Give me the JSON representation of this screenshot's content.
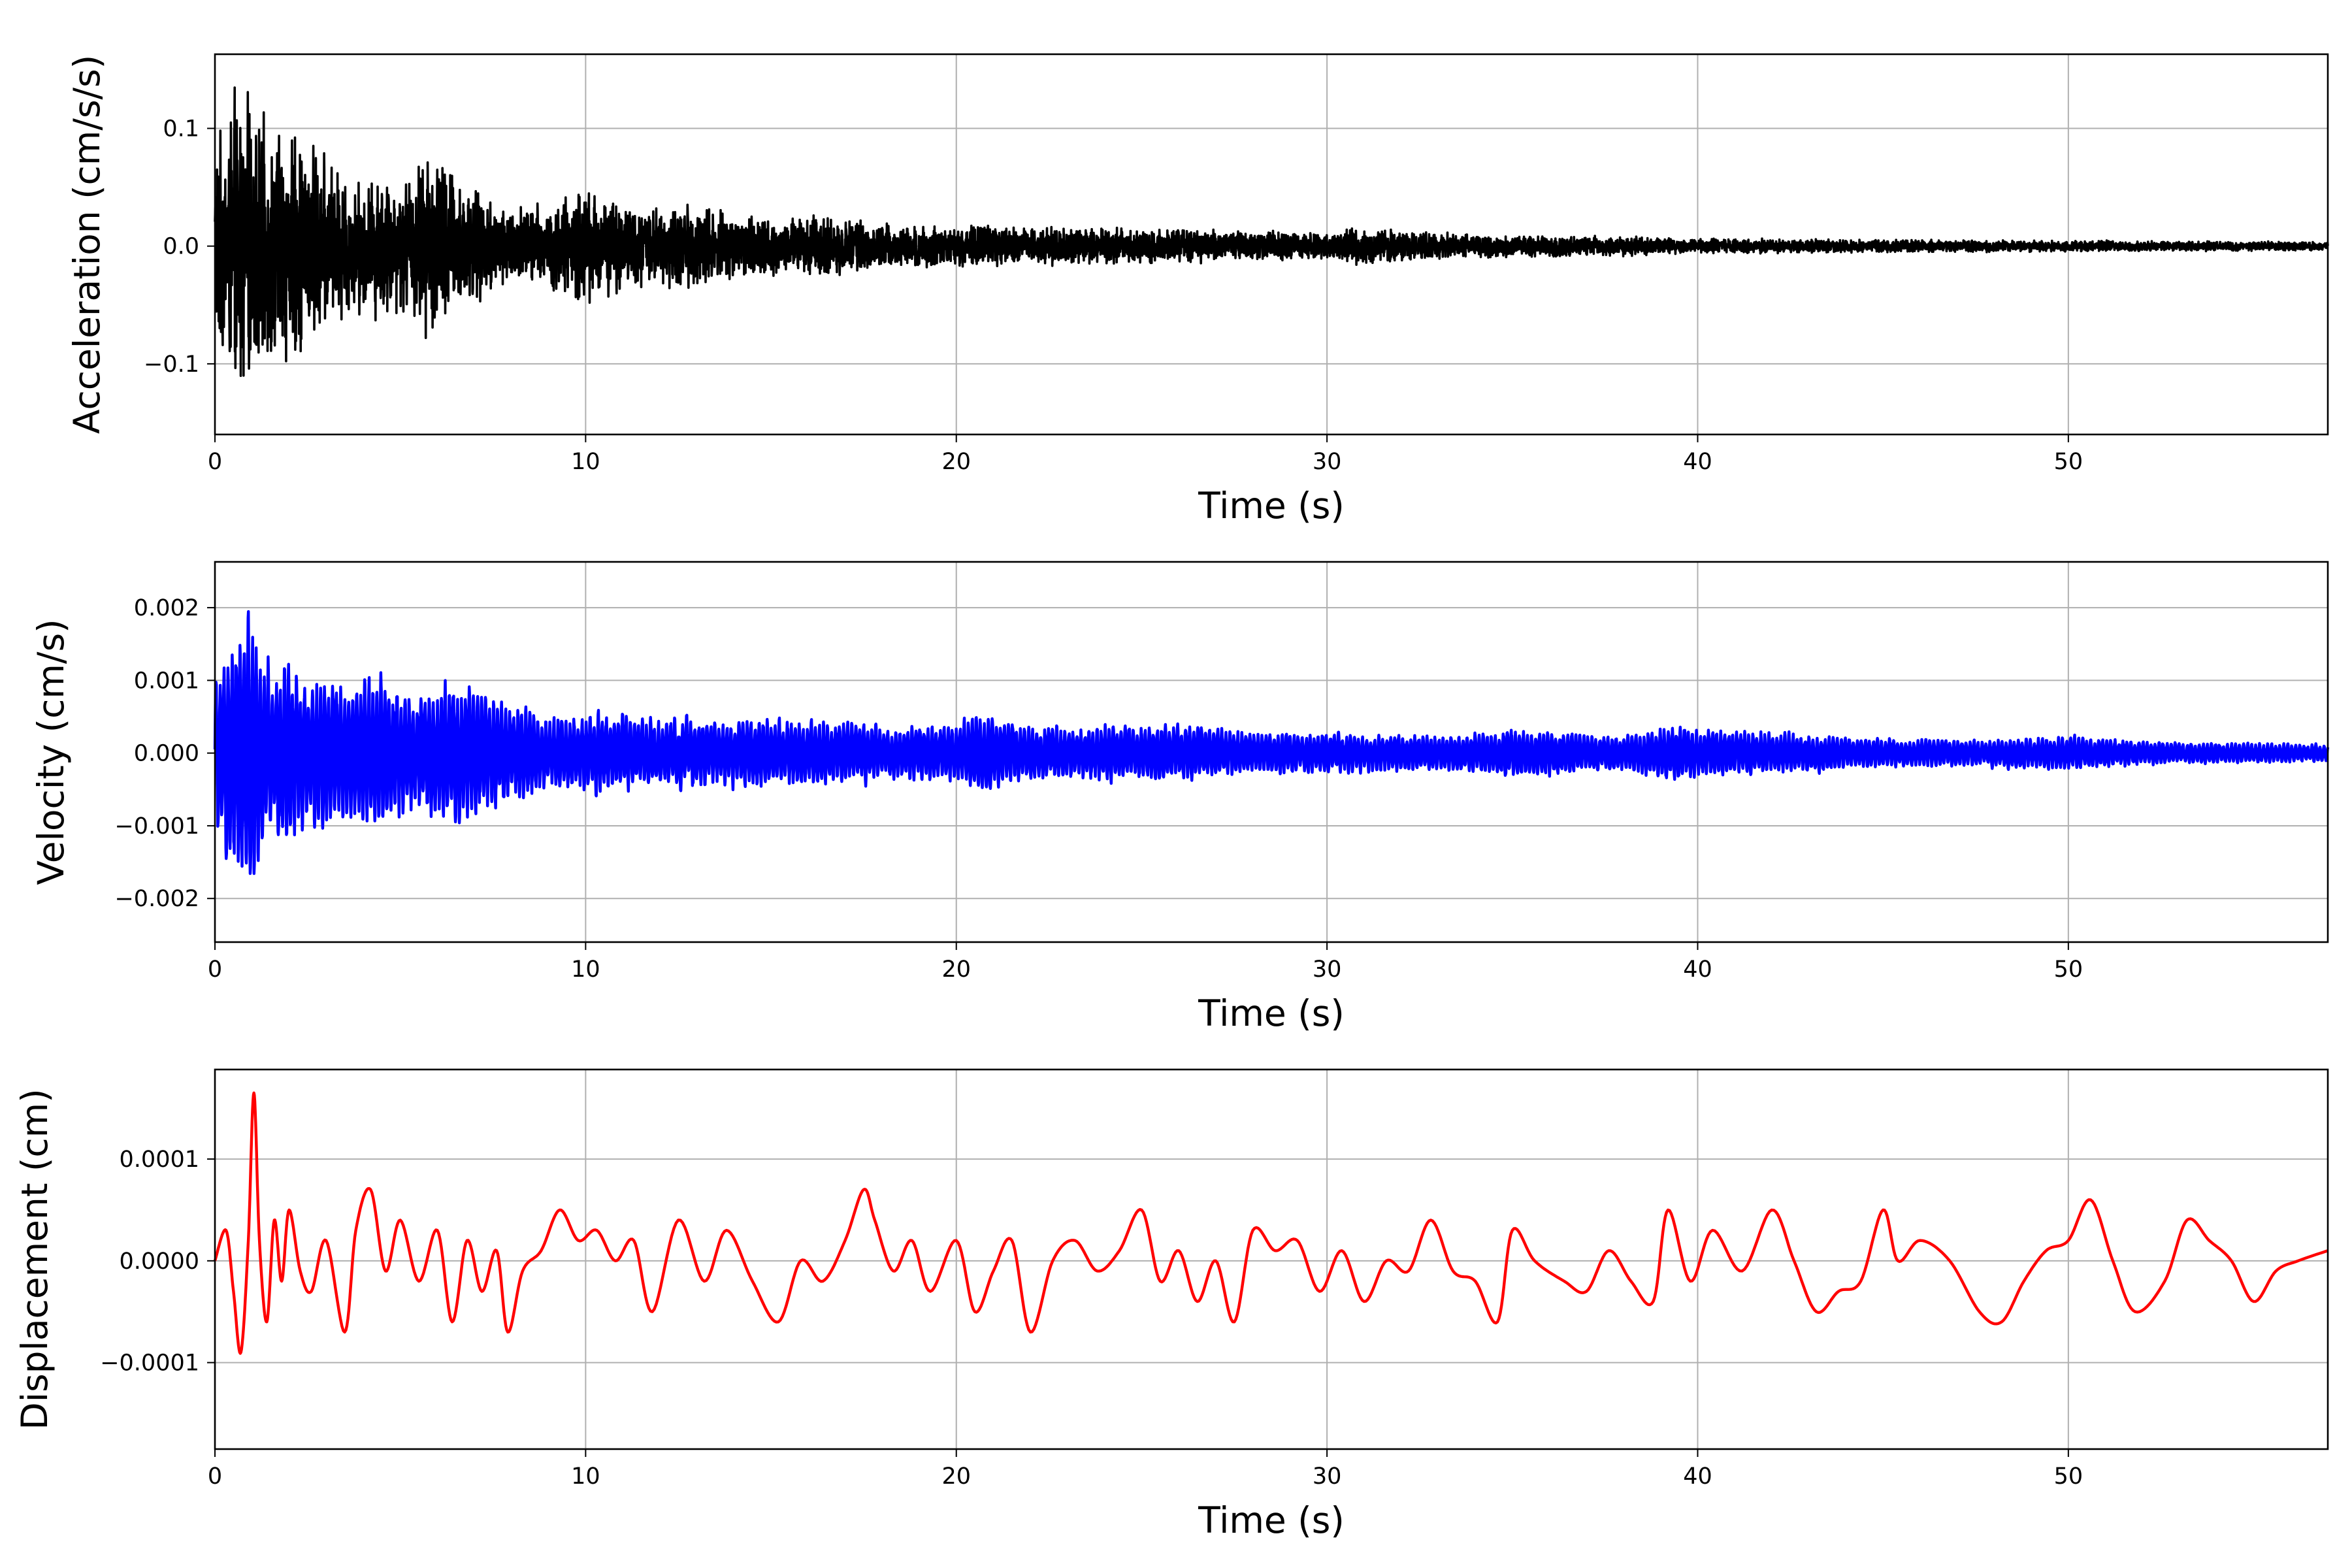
{
  "chart_data": [
    {
      "type": "line",
      "xlabel": "Time (s)",
      "ylabel": "Acceleration (cm/s/s)",
      "xlim": [
        0,
        57
      ],
      "ylim": [
        -0.16,
        0.163
      ],
      "xticks": [
        0,
        10,
        20,
        30,
        40,
        50
      ],
      "xtick_labels": [
        "0",
        "10",
        "20",
        "30",
        "40",
        "50"
      ],
      "yticks": [
        -0.1,
        0.0,
        0.1
      ],
      "ytick_labels": [
        "−0.1",
        "0.0",
        "0.1"
      ],
      "grid": true,
      "color": "#000000",
      "series": [
        {
          "x": [
            0,
            0.3,
            0.5,
            0.8,
            1,
            1.5,
            2,
            2.5,
            3,
            3.5,
            4,
            4.5,
            5,
            5.5,
            6,
            6.5,
            7,
            8,
            9,
            10,
            10.5,
            11,
            12,
            13,
            14,
            15,
            16,
            17,
            18,
            20,
            22,
            25,
            28,
            30,
            31,
            33,
            35,
            38,
            40,
            45,
            50,
            57
          ],
          "envelope": [
            0.1,
            0.105,
            0.14,
            0.15,
            0.12,
            0.11,
            0.11,
            0.1,
            0.08,
            0.07,
            0.06,
            0.07,
            0.06,
            0.08,
            0.09,
            0.07,
            0.05,
            0.04,
            0.04,
            0.055,
            0.05,
            0.04,
            0.035,
            0.04,
            0.03,
            0.028,
            0.027,
            0.025,
            0.02,
            0.02,
            0.018,
            0.016,
            0.014,
            0.013,
            0.018,
            0.012,
            0.01,
            0.009,
            0.007,
            0.006,
            0.005,
            0.004
          ]
        }
      ]
    },
    {
      "type": "line",
      "xlabel": "Time (s)",
      "ylabel": "Velocity (cm/s)",
      "xlim": [
        0,
        57
      ],
      "ylim": [
        -0.0026,
        0.00263
      ],
      "xticks": [
        0,
        10,
        20,
        30,
        40,
        50
      ],
      "xtick_labels": [
        "0",
        "10",
        "20",
        "30",
        "40",
        "50"
      ],
      "yticks": [
        -0.002,
        -0.001,
        0.0,
        0.001,
        0.002
      ],
      "ytick_labels": [
        "−0.002",
        "−0.001",
        "0.000",
        "0.001",
        "0.002"
      ],
      "grid": true,
      "color": "#0000ff",
      "series": [
        {
          "x": [
            0,
            0.2,
            0.4,
            0.6,
            0.8,
            1,
            1.2,
            1.5,
            2,
            2.5,
            3,
            3.5,
            4,
            4.5,
            5,
            6,
            6.5,
            7,
            8,
            9,
            10,
            12,
            15,
            18,
            20,
            20.5,
            22,
            25,
            26.5,
            28,
            30,
            33,
            35,
            38,
            39.2,
            42,
            45,
            48,
            50,
            53,
            55,
            57
          ],
          "envelope": [
            0.0012,
            0.0013,
            0.0018,
            0.002,
            0.0019,
            0.0024,
            0.0014,
            0.0012,
            0.0013,
            0.001,
            0.0013,
            0.0009,
            0.0011,
            0.0012,
            0.0009,
            0.0009,
            0.0011,
            0.0009,
            0.0008,
            0.0005,
            0.0006,
            0.0005,
            0.0005,
            0.0004,
            0.0004,
            0.0006,
            0.0004,
            0.0004,
            0.0004,
            0.0003,
            0.0003,
            0.00025,
            0.00035,
            0.00025,
            0.00038,
            0.0003,
            0.0002,
            0.0002,
            0.00025,
            0.00015,
            0.00015,
            0.00012
          ]
        }
      ]
    },
    {
      "type": "line",
      "xlabel": "Time (s)",
      "ylabel": "Displacement (cm)",
      "xlim": [
        0,
        57
      ],
      "ylim": [
        -0.000185,
        0.000188
      ],
      "xticks": [
        0,
        10,
        20,
        30,
        40,
        50
      ],
      "xtick_labels": [
        "0",
        "10",
        "20",
        "30",
        "40",
        "50"
      ],
      "yticks": [
        -0.0001,
        0.0,
        0.0001
      ],
      "ytick_labels": [
        "−0.0001",
        "0.0000",
        "0.0001"
      ],
      "grid": true,
      "color": "#ff0000",
      "series": [
        {
          "x": [
            0,
            0.3,
            0.5,
            0.7,
            0.9,
            1.05,
            1.2,
            1.4,
            1.6,
            1.8,
            2,
            2.3,
            2.6,
            3,
            3.5,
            3.8,
            4.2,
            4.6,
            5,
            5.5,
            6,
            6.4,
            6.8,
            7.2,
            7.6,
            7.9,
            8.3,
            8.8,
            9.3,
            9.8,
            10.3,
            10.8,
            11.3,
            11.8,
            12.5,
            13.2,
            13.8,
            14.5,
            15.2,
            15.8,
            16.4,
            17,
            17.5,
            17.8,
            18.3,
            18.8,
            19.3,
            20,
            20.5,
            21,
            21.5,
            22,
            22.6,
            23.2,
            23.8,
            24.4,
            25,
            25.5,
            26,
            26.5,
            27,
            27.5,
            28,
            28.6,
            29.2,
            29.8,
            30.4,
            31,
            31.6,
            32.2,
            32.8,
            33.4,
            34,
            34.6,
            35,
            35.6,
            36.4,
            37,
            37.6,
            38.2,
            38.8,
            39.2,
            39.8,
            40.4,
            41.2,
            42,
            42.6,
            43.2,
            43.8,
            44.4,
            45,
            45.4,
            46,
            46.8,
            47.6,
            48.2,
            48.8,
            49.4,
            50,
            50.6,
            51.2,
            51.8,
            52.6,
            53.2,
            53.8,
            54.4,
            55,
            55.6,
            56.2,
            57
          ],
          "y": [
            0.0,
            3e-05,
            -3e-05,
            -9e-05,
            2e-05,
            0.000165,
            2e-05,
            -6e-05,
            4e-05,
            -2e-05,
            5e-05,
            -1e-05,
            -3e-05,
            2e-05,
            -7e-05,
            3e-05,
            7e-05,
            -1e-05,
            4e-05,
            -2e-05,
            3e-05,
            -6e-05,
            2e-05,
            -3e-05,
            1e-05,
            -7e-05,
            -1e-05,
            1e-05,
            5e-05,
            2e-05,
            3e-05,
            0.0,
            2e-05,
            -5e-05,
            4e-05,
            -2e-05,
            3e-05,
            -2e-05,
            -6e-05,
            0.0,
            -2e-05,
            2e-05,
            7e-05,
            4e-05,
            -1e-05,
            2e-05,
            -3e-05,
            2e-05,
            -5e-05,
            -1e-05,
            2e-05,
            -7e-05,
            0.0,
            2e-05,
            -1e-05,
            1e-05,
            5e-05,
            -2e-05,
            1e-05,
            -4e-05,
            0.0,
            -6e-05,
            3e-05,
            1e-05,
            2e-05,
            -3e-05,
            1e-05,
            -4e-05,
            0.0,
            -1e-05,
            4e-05,
            -1e-05,
            -2e-05,
            -6e-05,
            3e-05,
            0.0,
            -2e-05,
            -3e-05,
            1e-05,
            -2e-05,
            -4e-05,
            5e-05,
            -2e-05,
            3e-05,
            -1e-05,
            5e-05,
            0.0,
            -5e-05,
            -3e-05,
            -2e-05,
            5e-05,
            0.0,
            2e-05,
            0.0,
            -5e-05,
            -6e-05,
            -2e-05,
            1e-05,
            2e-05,
            6e-05,
            0.0,
            -5e-05,
            -2e-05,
            4e-05,
            2e-05,
            0.0,
            -4e-05,
            -1e-05,
            0.0,
            1e-05
          ]
        }
      ]
    }
  ]
}
